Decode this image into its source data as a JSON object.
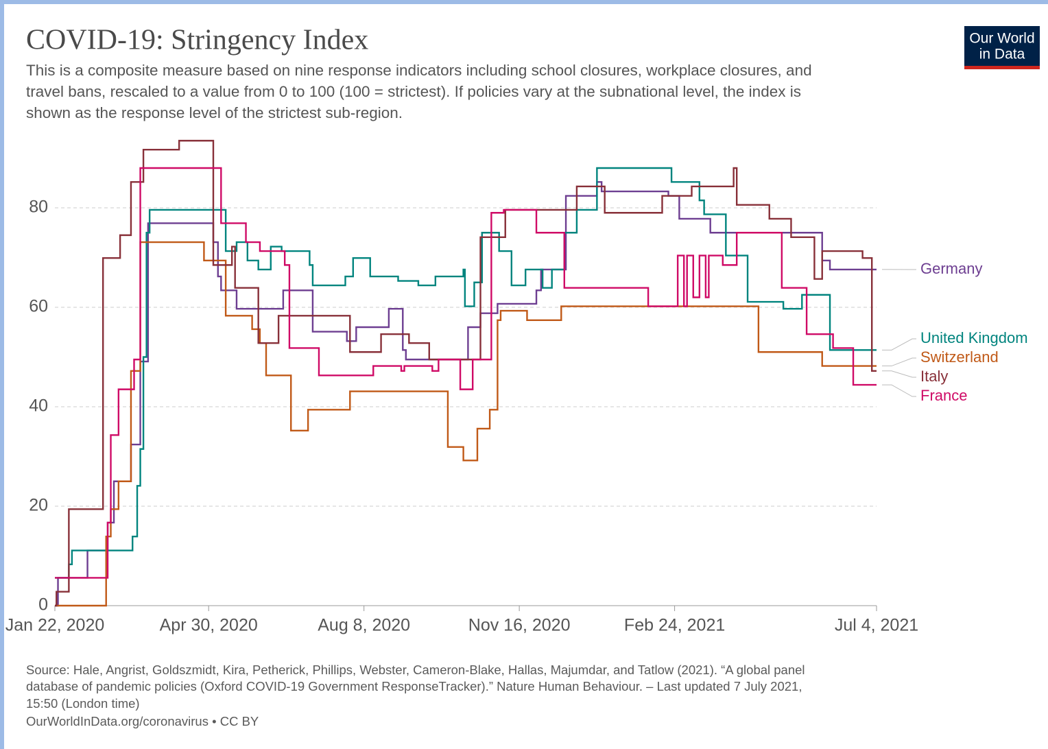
{
  "chart_data": {
    "type": "line",
    "title": "COVID-19: Stringency Index",
    "subtitle": [
      "This is a composite measure based on nine response indicators including school closures, workplace closures, and",
      "travel bans, rescaled to a value from 0 to 100 (100 = strictest). If policies vary at the subnational level, the index is",
      "shown as the response level of the strictest sub-region."
    ],
    "source": [
      "Source: Hale, Angrist, Goldszmidt, Kira, Petherick, Phillips, Webster, Cameron-Blake, Hallas, Majumdar, and Tatlow (2021). “A global panel",
      "database of pandemic policies (Oxford COVID-19 Government ResponseTracker).” Nature Human Behaviour. – Last updated 7 July 2021,",
      "15:50 (London time)",
      "OurWorldInData.org/coronavirus • CC BY"
    ],
    "logo": [
      "Our World",
      "in Data"
    ],
    "xlim": [
      "2020-01-22",
      "2021-07-04"
    ],
    "xticks": [
      {
        "value": "2020-01-22",
        "label": "Jan 22, 2020"
      },
      {
        "value": "2020-04-30",
        "label": "Apr 30, 2020"
      },
      {
        "value": "2020-08-08",
        "label": "Aug 8, 2020"
      },
      {
        "value": "2020-11-16",
        "label": "Nov 16, 2020"
      },
      {
        "value": "2021-02-24",
        "label": "Feb 24, 2021"
      },
      {
        "value": "2021-07-04",
        "label": "Jul 4, 2021"
      }
    ],
    "ylim": [
      0,
      100
    ],
    "yticks": [
      0,
      20,
      40,
      60,
      80
    ],
    "grid": true,
    "series": [
      {
        "name": "Germany",
        "color": "#6d3e91",
        "x": [
          "2020-01-22",
          "2020-01-24",
          "2020-02-12",
          "2020-02-25",
          "2020-02-29",
          "2020-03-11",
          "2020-03-17",
          "2020-03-22",
          "2020-05-03",
          "2020-05-06",
          "2020-05-08",
          "2020-05-18",
          "2020-06-17",
          "2020-07-06",
          "2020-07-28",
          "2020-08-03",
          "2020-08-24",
          "2020-09-02",
          "2020-09-04",
          "2020-10-14",
          "2020-10-22",
          "2020-11-02",
          "2020-11-27",
          "2020-11-30",
          "2020-12-16",
          "2021-01-05",
          "2021-01-08",
          "2021-02-20",
          "2021-02-27",
          "2021-03-19",
          "2021-05-30",
          "2021-06-04",
          "2021-07-04"
        ],
        "values": [
          0,
          5.6,
          11.1,
          16.7,
          25,
          32.4,
          49.1,
          76.9,
          73.1,
          66.2,
          63.4,
          59.7,
          63.4,
          55.1,
          53.2,
          56,
          59.7,
          51.4,
          49.5,
          56,
          58.8,
          60.7,
          63.4,
          67.6,
          82.4,
          85.2,
          83.3,
          82.4,
          77.8,
          75,
          69.4,
          67.6,
          67.6
        ]
      },
      {
        "name": "United Kingdom",
        "color": "#00847e",
        "x": [
          "2020-01-22",
          "2020-01-31",
          "2020-02-02",
          "2020-03-12",
          "2020-03-15",
          "2020-03-17",
          "2020-03-19",
          "2020-03-21",
          "2020-03-23",
          "2020-05-11",
          "2020-05-18",
          "2020-05-25",
          "2020-06-01",
          "2020-06-09",
          "2020-06-16",
          "2020-07-04",
          "2020-07-06",
          "2020-07-27",
          "2020-08-01",
          "2020-08-12",
          "2020-08-30",
          "2020-09-12",
          "2020-09-23",
          "2020-10-11",
          "2020-10-12",
          "2020-10-18",
          "2020-10-23",
          "2020-11-03",
          "2020-11-11",
          "2020-11-20",
          "2020-12-01",
          "2020-12-07",
          "2020-12-15",
          "2020-12-23",
          "2021-01-05",
          "2021-02-22",
          "2021-03-12",
          "2021-03-15",
          "2021-03-29",
          "2021-04-12",
          "2021-05-05",
          "2021-05-17",
          "2021-06-04",
          "2021-07-04"
        ],
        "values": [
          5.6,
          8.3,
          11.1,
          13.9,
          24.1,
          31.5,
          50,
          75,
          79.6,
          71.3,
          73.1,
          69.4,
          67.6,
          72.2,
          71.3,
          68.5,
          64.4,
          66.2,
          69.9,
          66.2,
          65.3,
          64.4,
          66.2,
          67.6,
          60.2,
          65,
          75,
          71.3,
          64.4,
          67.6,
          63.9,
          67.6,
          75,
          79.6,
          88,
          85.2,
          81.5,
          78.7,
          70.4,
          61.1,
          59.7,
          62.5,
          51.4,
          51.4
        ]
      },
      {
        "name": "Switzerland",
        "color": "#c05917",
        "x": [
          "2020-01-22",
          "2020-02-24",
          "2020-02-27",
          "2020-03-03",
          "2020-03-11",
          "2020-03-17",
          "2020-04-27",
          "2020-05-11",
          "2020-05-28",
          "2020-06-02",
          "2020-06-06",
          "2020-06-22",
          "2020-07-03",
          "2020-07-30",
          "2020-10-01",
          "2020-10-11",
          "2020-10-20",
          "2020-10-28",
          "2020-11-02",
          "2020-11-04",
          "2020-11-21",
          "2020-12-13",
          "2021-04-19",
          "2021-05-30",
          "2021-07-04"
        ],
        "values": [
          0,
          13.9,
          19.4,
          25,
          47.2,
          73.1,
          69.4,
          58.3,
          55.6,
          52.8,
          46.3,
          35.2,
          39.4,
          43.1,
          31.9,
          29.2,
          35.6,
          39.4,
          57.4,
          59.3,
          57.4,
          60.2,
          51,
          48.2,
          48.2
        ]
      },
      {
        "name": "Italy",
        "color": "#883039",
        "x": [
          "2020-01-22",
          "2020-01-23",
          "2020-01-31",
          "2020-02-22",
          "2020-03-04",
          "2020-03-11",
          "2020-03-19",
          "2020-04-11",
          "2020-05-03",
          "2020-05-15",
          "2020-05-17",
          "2020-06-01",
          "2020-06-14",
          "2020-07-30",
          "2020-08-19",
          "2020-09-06",
          "2020-09-19",
          "2020-10-22",
          "2020-11-07",
          "2020-12-23",
          "2021-01-10",
          "2021-02-16",
          "2021-03-07",
          "2021-04-03",
          "2021-04-05",
          "2021-04-26",
          "2021-05-10",
          "2021-05-25",
          "2021-05-30",
          "2021-06-25",
          "2021-07-01",
          "2021-07-04"
        ],
        "values": [
          0,
          2.8,
          19.4,
          69.9,
          74.5,
          85.2,
          91.7,
          93.5,
          68.5,
          72.2,
          63.9,
          52.8,
          58.3,
          51,
          54.6,
          52.8,
          49.5,
          74.1,
          79.6,
          84.3,
          79,
          82.4,
          84.3,
          88,
          80.6,
          77.8,
          74.1,
          65.7,
          71.3,
          69.9,
          47.2,
          47.2
        ]
      },
      {
        "name": "France",
        "color": "#cf0a66",
        "x": [
          "2020-01-22",
          "2020-02-25",
          "2020-02-27",
          "2020-03-03",
          "2020-03-13",
          "2020-03-17",
          "2020-05-08",
          "2020-05-24",
          "2020-06-02",
          "2020-06-18",
          "2020-06-21",
          "2020-07-10",
          "2020-08-14",
          "2020-09-01",
          "2020-09-03",
          "2020-09-21",
          "2020-09-25",
          "2020-10-09",
          "2020-10-17",
          "2020-10-29",
          "2020-11-06",
          "2020-11-27",
          "2020-12-15",
          "2021-02-07",
          "2021-02-26",
          "2021-03-02",
          "2021-03-04",
          "2021-03-08",
          "2021-03-12",
          "2021-03-16",
          "2021-03-18",
          "2021-03-27",
          "2021-04-05",
          "2021-05-04",
          "2021-05-20",
          "2021-06-06",
          "2021-06-19",
          "2021-07-04"
        ],
        "values": [
          5.6,
          16.7,
          34.3,
          43.5,
          49.5,
          88,
          76.9,
          73.1,
          71.3,
          68.5,
          51.8,
          46.3,
          48.2,
          47.2,
          48.2,
          47.2,
          49.5,
          43.5,
          49.5,
          79,
          79.6,
          75,
          63.9,
          60.2,
          70.4,
          60.2,
          70.4,
          62,
          70.4,
          62,
          70.4,
          68.5,
          75,
          63.9,
          54.6,
          51.8,
          44.4,
          44.4
        ]
      }
    ]
  }
}
